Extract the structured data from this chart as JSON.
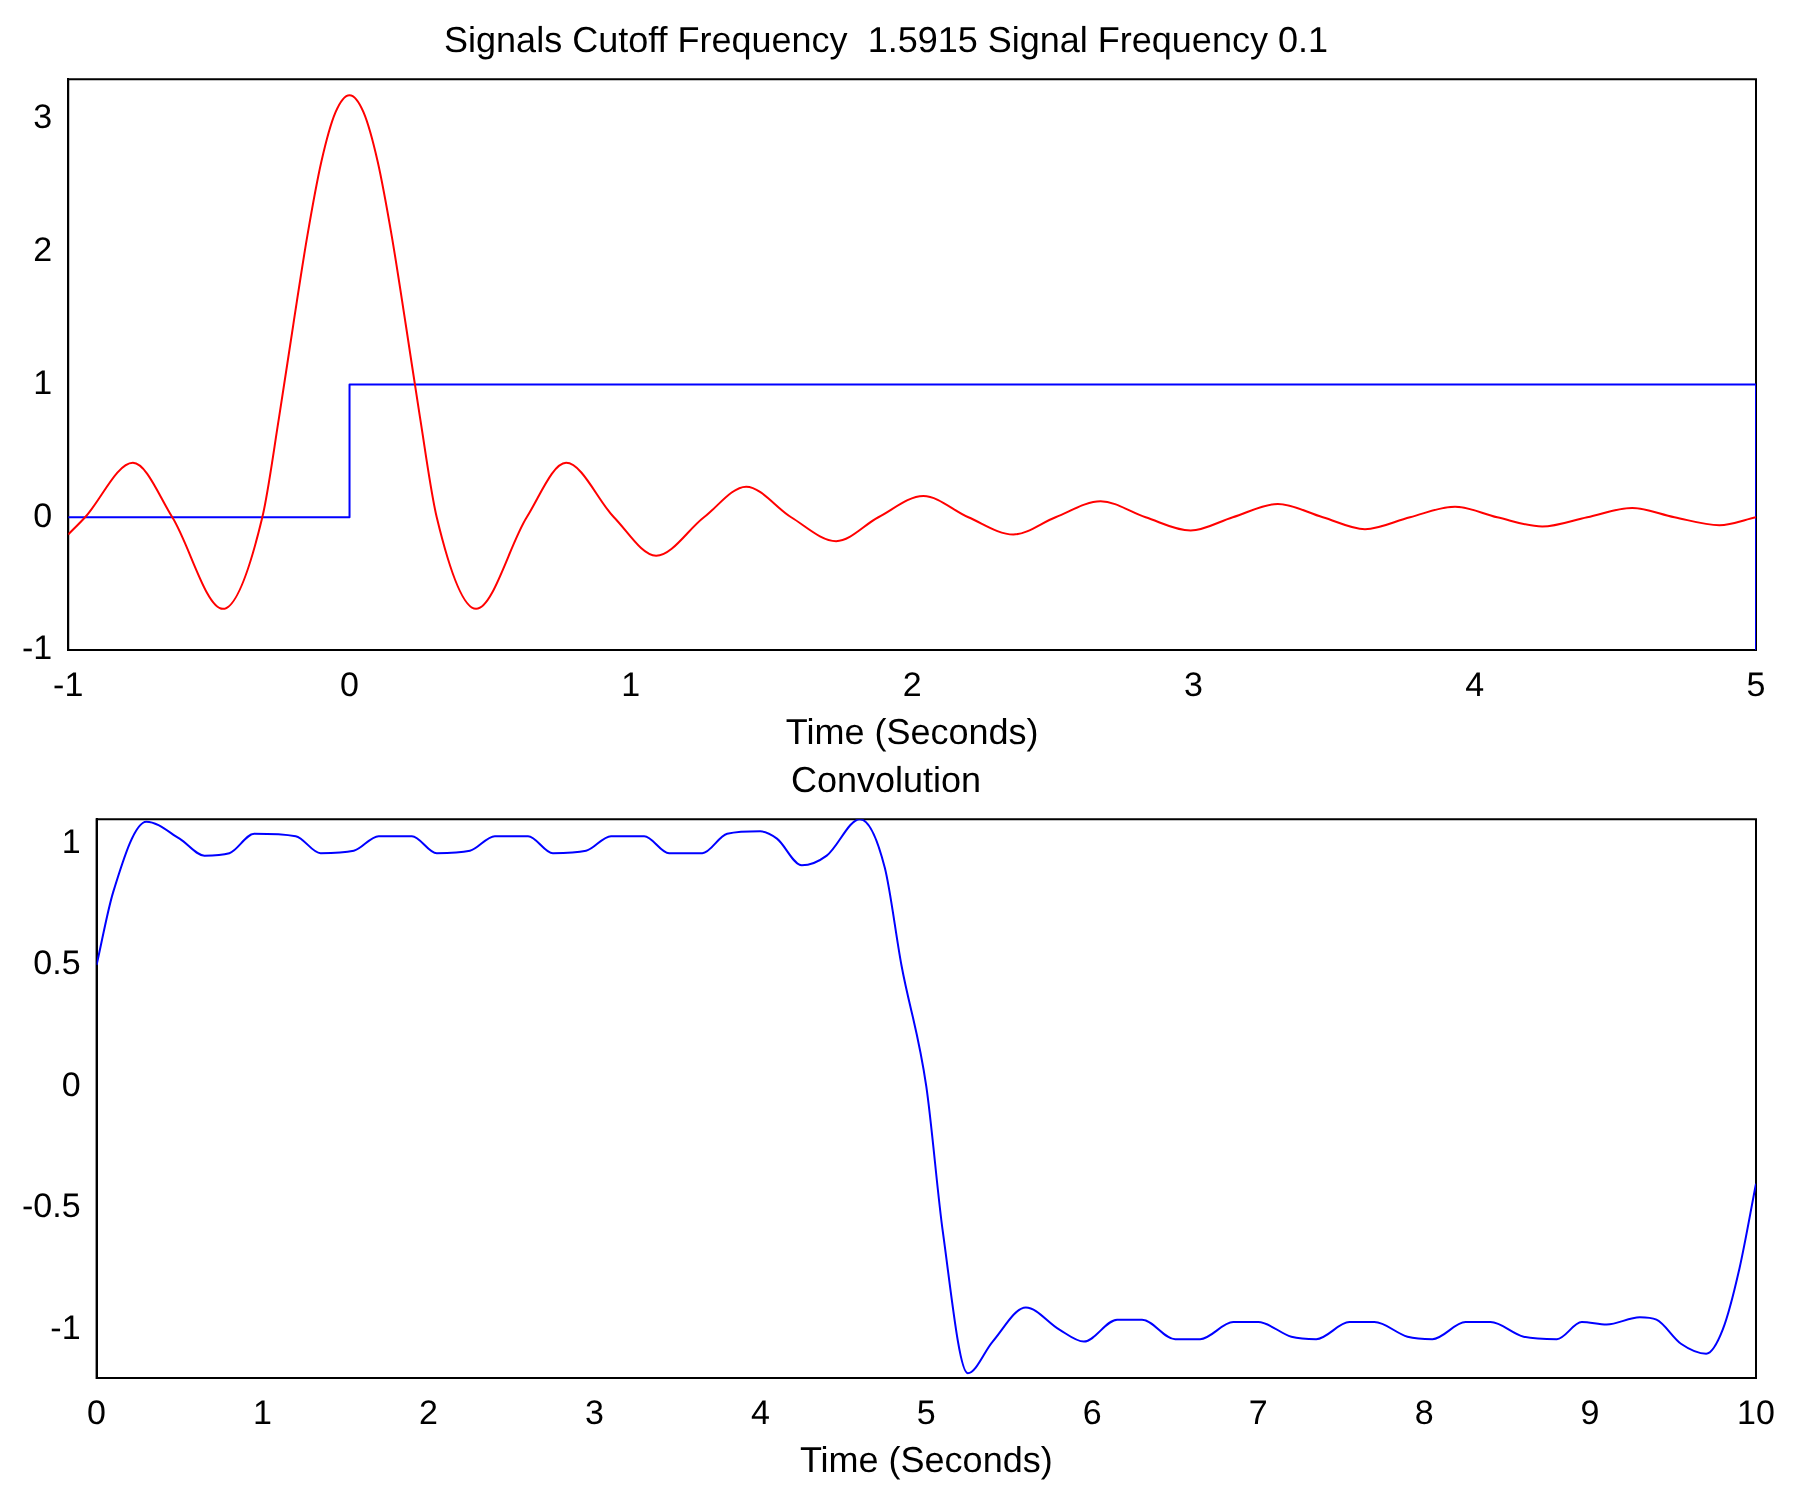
{
  "chart_data": [
    {
      "type": "line",
      "title": "Signals Cutoff Frequency  1.5915 Signal Frequency 0.1",
      "xlabel": "Time (Seconds)",
      "xlim": [
        -1,
        5
      ],
      "xticks": [
        -1,
        0,
        1,
        2,
        3,
        4,
        5
      ],
      "ylim": [
        -1,
        3.3
      ],
      "yticks": [
        -1,
        0,
        1,
        2,
        3
      ],
      "series": [
        {
          "type": "line",
          "color": "#ff0000",
          "x": [
            -1,
            -0.94,
            -0.77,
            -0.63,
            -0.45,
            -0.31,
            -0.25,
            -0.2,
            -0.15,
            -0.1,
            -0.05,
            0,
            0.05,
            0.1,
            0.15,
            0.2,
            0.25,
            0.31,
            0.45,
            0.63,
            0.77,
            0.94,
            1.09,
            1.26,
            1.41,
            1.57,
            1.73,
            1.88,
            2.04,
            2.2,
            2.36,
            2.51,
            2.67,
            2.83,
            2.99,
            3.14,
            3.3,
            3.46,
            3.61,
            3.77,
            3.93,
            4.08,
            4.24,
            4.4,
            4.56,
            4.71,
            4.87,
            5
          ],
          "values": [
            -0.13,
            0,
            0.41,
            0,
            -0.69,
            0,
            0.76,
            1.45,
            2.12,
            2.68,
            3.05,
            3.18,
            3.05,
            2.68,
            2.12,
            1.45,
            0.76,
            0,
            -0.69,
            0,
            0.41,
            0,
            -0.29,
            0,
            0.23,
            0,
            -0.18,
            0,
            0.16,
            0,
            -0.13,
            0,
            0.12,
            0,
            -0.1,
            0,
            0.1,
            0,
            -0.09,
            0,
            0.08,
            0,
            -0.07,
            0,
            0.07,
            0,
            -0.06,
            0
          ]
        },
        {
          "type": "step",
          "color": "#0000ff",
          "x": [
            -1,
            0,
            5,
            5
          ],
          "values": [
            0,
            1,
            1,
            -1
          ]
        }
      ]
    },
    {
      "type": "line",
      "title": "Convolution",
      "xlabel": "Time (Seconds)",
      "xlim": [
        0,
        10
      ],
      "xticks": [
        0,
        1,
        2,
        3,
        4,
        5,
        6,
        7,
        8,
        9,
        10
      ],
      "ylim": [
        -1.2,
        1.1
      ],
      "yticks": [
        -1,
        -0.5,
        0,
        0.5,
        1
      ],
      "series": [
        {
          "type": "line",
          "color": "#0000ff",
          "x": [
            0,
            0.1,
            0.3,
            0.5,
            0.65,
            0.8,
            0.95,
            1.2,
            1.35,
            1.55,
            1.7,
            1.9,
            2.05,
            2.25,
            2.4,
            2.6,
            2.75,
            2.95,
            3.1,
            3.3,
            3.45,
            3.65,
            3.8,
            4.0,
            4.1,
            4.25,
            4.4,
            4.6,
            4.75,
            4.85,
            5,
            5.1,
            5.25,
            5.4,
            5.6,
            5.8,
            5.95,
            6.15,
            6.3,
            6.5,
            6.65,
            6.85,
            7.0,
            7.2,
            7.35,
            7.55,
            7.7,
            7.9,
            8.05,
            8.25,
            8.4,
            8.6,
            8.8,
            8.95,
            9.1,
            9.3,
            9.4,
            9.55,
            9.7,
            9.8,
            9.9,
            10
          ],
          "values": [
            0.5,
            0.8,
            1.09,
            1.02,
            0.95,
            0.96,
            1.04,
            1.03,
            0.96,
            0.97,
            1.03,
            1.03,
            0.96,
            0.97,
            1.03,
            1.03,
            0.96,
            0.97,
            1.03,
            1.03,
            0.96,
            0.96,
            1.04,
            1.05,
            1.02,
            0.91,
            0.95,
            1.1,
            0.9,
            0.5,
            0,
            -0.6,
            -1.18,
            -1.05,
            -0.91,
            -1.0,
            -1.05,
            -0.96,
            -0.96,
            -1.04,
            -1.04,
            -0.97,
            -0.97,
            -1.03,
            -1.04,
            -0.97,
            -0.97,
            -1.03,
            -1.04,
            -0.97,
            -0.97,
            -1.03,
            -1.04,
            -0.97,
            -0.98,
            -0.95,
            -0.96,
            -1.06,
            -1.1,
            -1.0,
            -0.75,
            -0.4
          ]
        }
      ]
    }
  ]
}
